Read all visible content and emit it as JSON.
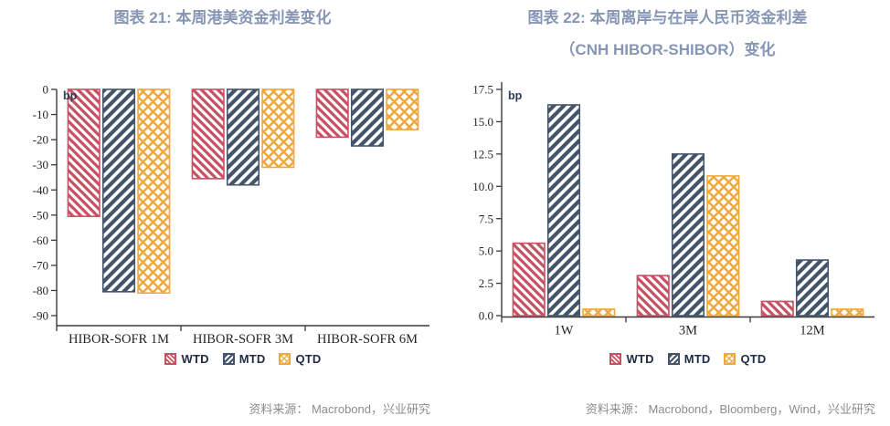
{
  "colors": {
    "title": "#8696B4",
    "legend_text": "#1F2B45",
    "axis": "#3A3A3A",
    "tick_text": "#262626",
    "unit_text": "#2E3B54",
    "source": "#8C8C8C",
    "wtd": "#C94F63",
    "mtd": "#44546A",
    "qtd": "#EFA83C",
    "background": "#FFFFFF"
  },
  "chart_data": [
    {
      "type": "bar",
      "title": "图表 21: 本周港美资金利差变化",
      "unit_label": "bp",
      "categories": [
        "HIBOR-SOFR 1M",
        "HIBOR-SOFR 3M",
        "HIBOR-SOFR 6M"
      ],
      "series": [
        {
          "name": "WTD",
          "color": "#C94F63",
          "hatch": "diag-down",
          "values": [
            -50.5,
            -35.5,
            -19
          ]
        },
        {
          "name": "MTD",
          "color": "#44546A",
          "hatch": "diag-up",
          "values": [
            -80.5,
            -38,
            -22.5
          ]
        },
        {
          "name": "QTD",
          "color": "#EFA83C",
          "hatch": "cross",
          "values": [
            -81,
            -31,
            -16
          ]
        }
      ],
      "ylim": [
        -90,
        0
      ],
      "yticks": [
        0,
        -10,
        -20,
        -30,
        -40,
        -50,
        -60,
        -70,
        -80,
        -90
      ],
      "ytick_labels": [
        "0",
        "-10",
        "-20",
        "-30",
        "-40",
        "-50",
        "-60",
        "-70",
        "-80",
        "-90"
      ],
      "grid": false,
      "legend_position": "bottom",
      "legend": [
        "WTD",
        "MTD",
        "QTD"
      ],
      "source": "资料来源： Macrobond，兴业研究"
    },
    {
      "type": "bar",
      "title": "图表 22: 本周离岸与在岸人民币资金利差",
      "title_line2": "（CNH HIBOR-SHIBOR）变化",
      "unit_label": "bp",
      "categories": [
        "1W",
        "3M",
        "12M"
      ],
      "series": [
        {
          "name": "WTD",
          "color": "#C94F63",
          "hatch": "diag-down",
          "values": [
            5.6,
            3.1,
            1.1
          ]
        },
        {
          "name": "MTD",
          "color": "#44546A",
          "hatch": "diag-up",
          "values": [
            16.3,
            12.5,
            4.3
          ]
        },
        {
          "name": "QTD",
          "color": "#EFA83C",
          "hatch": "cross",
          "values": [
            0.5,
            10.8,
            0.5
          ]
        }
      ],
      "ylim": [
        0,
        17.5
      ],
      "yticks": [
        0,
        2.5,
        5,
        7.5,
        10,
        12.5,
        15,
        17.5
      ],
      "ytick_labels": [
        "0.0",
        "2.5",
        "5.0",
        "7.5",
        "10.0",
        "12.5",
        "15.0",
        "17.5"
      ],
      "grid": false,
      "legend_position": "bottom",
      "legend": [
        "WTD",
        "MTD",
        "QTD"
      ],
      "source": "资料来源： Macrobond，Bloomberg，Wind，兴业研究"
    }
  ]
}
